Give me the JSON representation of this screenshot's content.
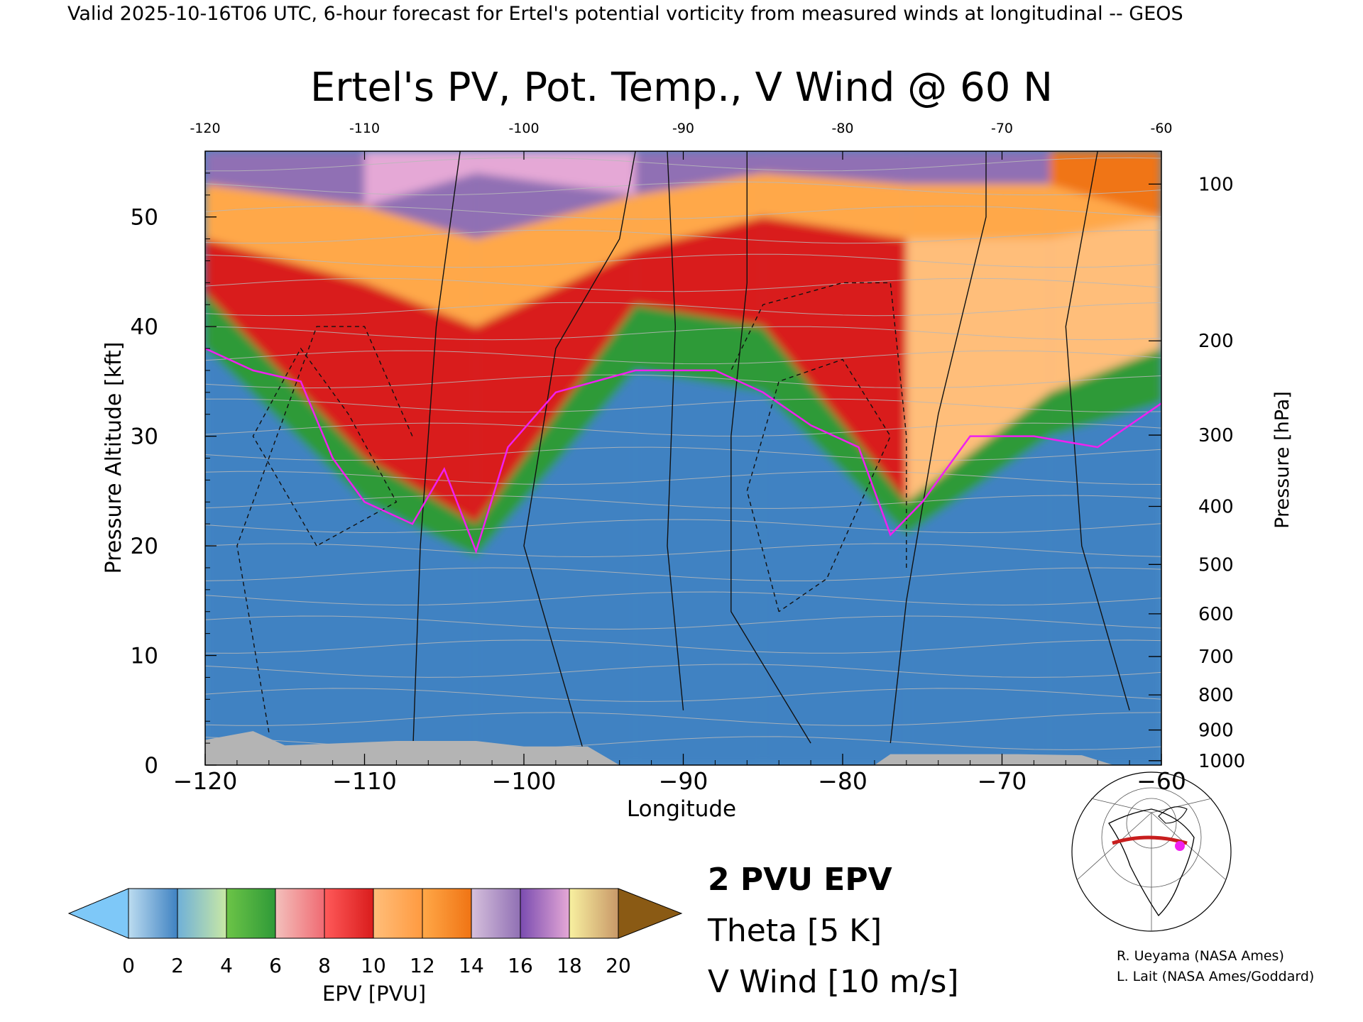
{
  "header": {
    "banner": "Valid 2025-10-16T06 UTC, 6-hour forecast for Ertel's potential vorticity from measured winds at longitudinal -- GEOS"
  },
  "chart_data": {
    "type": "heatmap",
    "title": "Ertel's PV, Pot. Temp., V Wind @ 60 N",
    "xlabel": "Longitude",
    "ylabel_left": "Pressure Altitude [kft]",
    "ylabel_right": "Pressure [hPa]",
    "xlim": [
      -120,
      -60
    ],
    "ylim": [
      0,
      56
    ],
    "x_ticks": [
      -120,
      -110,
      -100,
      -90,
      -80,
      -70,
      -60
    ],
    "x_tick_labels": [
      "−120",
      "−110",
      "−100",
      "−90",
      "−80",
      "−70",
      "−60"
    ],
    "top_tick_labels": [
      "-120",
      "-110",
      "-100",
      "-90",
      "-80",
      "-70",
      "-60"
    ],
    "y_ticks": [
      0,
      10,
      20,
      30,
      40,
      50
    ],
    "y_tick_labels": [
      "0",
      "10",
      "20",
      "30",
      "40",
      "50"
    ],
    "pressure_ticks": [
      {
        "label": "100",
        "kft": 53.0
      },
      {
        "label": "200",
        "kft": 38.7
      },
      {
        "label": "300",
        "kft": 30.1
      },
      {
        "label": "400",
        "kft": 23.6
      },
      {
        "label": "500",
        "kft": 18.3
      },
      {
        "label": "600",
        "kft": 13.8
      },
      {
        "label": "700",
        "kft": 9.9
      },
      {
        "label": "800",
        "kft": 6.4
      },
      {
        "label": "900",
        "kft": 3.2
      },
      {
        "label": "1000",
        "kft": 0.4
      }
    ],
    "tropopause_2pvu_kft": [
      {
        "lon": -120,
        "kft": 38
      },
      {
        "lon": -117,
        "kft": 36
      },
      {
        "lon": -114,
        "kft": 35
      },
      {
        "lon": -112,
        "kft": 28
      },
      {
        "lon": -110,
        "kft": 24
      },
      {
        "lon": -107,
        "kft": 22
      },
      {
        "lon": -105,
        "kft": 27
      },
      {
        "lon": -103,
        "kft": 19.5
      },
      {
        "lon": -101,
        "kft": 29
      },
      {
        "lon": -98,
        "kft": 34
      },
      {
        "lon": -93,
        "kft": 36
      },
      {
        "lon": -88,
        "kft": 36
      },
      {
        "lon": -85,
        "kft": 34
      },
      {
        "lon": -82,
        "kft": 31
      },
      {
        "lon": -79,
        "kft": 29
      },
      {
        "lon": -77,
        "kft": 21
      },
      {
        "lon": -75,
        "kft": 24
      },
      {
        "lon": -72,
        "kft": 30
      },
      {
        "lon": -68,
        "kft": 30
      },
      {
        "lon": -64,
        "kft": 29
      },
      {
        "lon": -60,
        "kft": 33
      }
    ],
    "epv_pvu_zones": [
      {
        "lon": -120,
        "bands_kft": [
          [
            0,
            38,
            1
          ],
          [
            38,
            43,
            5
          ],
          [
            43,
            48,
            9
          ],
          [
            48,
            53,
            12
          ],
          [
            53,
            56,
            15
          ]
        ]
      },
      {
        "lon": -110,
        "bands_kft": [
          [
            0,
            24,
            1
          ],
          [
            24,
            28,
            5
          ],
          [
            28,
            44,
            10
          ],
          [
            44,
            51,
            12
          ],
          [
            51,
            56,
            15
          ]
        ]
      },
      {
        "lon": -103,
        "bands_kft": [
          [
            0,
            19,
            1
          ],
          [
            19,
            22,
            5
          ],
          [
            22,
            40,
            9
          ],
          [
            40,
            48,
            12
          ],
          [
            48,
            54,
            15
          ],
          [
            54,
            56,
            20
          ]
        ]
      },
      {
        "lon": -93,
        "bands_kft": [
          [
            0,
            36,
            1
          ],
          [
            36,
            42,
            5
          ],
          [
            42,
            47,
            9
          ],
          [
            47,
            52,
            12
          ],
          [
            52,
            56,
            15
          ]
        ]
      },
      {
        "lon": -85,
        "bands_kft": [
          [
            0,
            34,
            1
          ],
          [
            34,
            40,
            5
          ],
          [
            40,
            50,
            9
          ],
          [
            50,
            54,
            12
          ],
          [
            54,
            56,
            15
          ]
        ]
      },
      {
        "lon": -76,
        "bands_kft": [
          [
            0,
            21,
            1
          ],
          [
            21,
            24,
            5
          ],
          [
            24,
            48,
            10
          ],
          [
            48,
            53,
            12
          ],
          [
            53,
            56,
            15
          ]
        ]
      },
      {
        "lon": -67,
        "bands_kft": [
          [
            0,
            30,
            1
          ],
          [
            30,
            34,
            5
          ],
          [
            34,
            48,
            10
          ],
          [
            48,
            53,
            12
          ],
          [
            53,
            56,
            15
          ]
        ]
      },
      {
        "lon": -60,
        "bands_kft": [
          [
            0,
            33,
            1
          ],
          [
            33,
            38,
            5
          ],
          [
            38,
            50,
            10
          ],
          [
            50,
            56,
            12
          ]
        ]
      }
    ],
    "terrain_kft": [
      {
        "lon": -120,
        "kft": 2.3
      },
      {
        "lon": -117,
        "kft": 3.1
      },
      {
        "lon": -115,
        "kft": 1.8
      },
      {
        "lon": -108,
        "kft": 2.2
      },
      {
        "lon": -103,
        "kft": 2.2
      },
      {
        "lon": -100,
        "kft": 1.7
      },
      {
        "lon": -96,
        "kft": 1.7
      },
      {
        "lon": -94,
        "kft": 0
      },
      {
        "lon": -78,
        "kft": 0
      },
      {
        "lon": -77,
        "kft": 1.0
      },
      {
        "lon": -69,
        "kft": 1.0
      },
      {
        "lon": -65,
        "kft": 0.9
      },
      {
        "lon": -63,
        "kft": 0
      }
    ],
    "colorbar": {
      "label": "EPV [PVU]",
      "tick_labels": [
        "0",
        "2",
        "4",
        "6",
        "8",
        "10",
        "12",
        "14",
        "16",
        "18",
        "20"
      ],
      "segments": [
        {
          "from": 0,
          "to": 2,
          "colors": [
            "#bcdcf0",
            "#3f82c2"
          ]
        },
        {
          "from": 2,
          "to": 4,
          "colors": [
            "#6fb0d8",
            "#c9e8a5"
          ]
        },
        {
          "from": 4,
          "to": 6,
          "colors": [
            "#6cc447",
            "#2f9a38"
          ]
        },
        {
          "from": 6,
          "to": 8,
          "colors": [
            "#f3c0bc",
            "#f06a72"
          ]
        },
        {
          "from": 8,
          "to": 10,
          "colors": [
            "#ff5a5a",
            "#d91c1c"
          ]
        },
        {
          "from": 10,
          "to": 12,
          "colors": [
            "#ffbe7a",
            "#ff9a40"
          ]
        },
        {
          "from": 12,
          "to": 14,
          "colors": [
            "#ffa848",
            "#f07414"
          ]
        },
        {
          "from": 14,
          "to": 16,
          "colors": [
            "#d6c0dc",
            "#9070b4"
          ]
        },
        {
          "from": 16,
          "to": 18,
          "colors": [
            "#7a4cb0",
            "#e5a8d6"
          ]
        },
        {
          "from": 18,
          "to": 20,
          "colors": [
            "#f8f0a0",
            "#c89868"
          ]
        }
      ],
      "under_color": "#7ec8f8",
      "over_color": "#8a5a14"
    },
    "legend": {
      "epv_line": "2 PVU EPV",
      "theta": "Theta [5 K]",
      "v_wind": "V Wind [10 m/s]"
    },
    "colors": {
      "pv2_contour": "#f020f0",
      "theta_contour": "#b8b8b8",
      "terrain": "#b4b4b4"
    }
  },
  "inset_map": {
    "description_icon": "polar-map-icon"
  },
  "credits": [
    "R. Ueyama (NASA Ames)",
    "L. Lait (NASA Ames/Goddard)"
  ]
}
